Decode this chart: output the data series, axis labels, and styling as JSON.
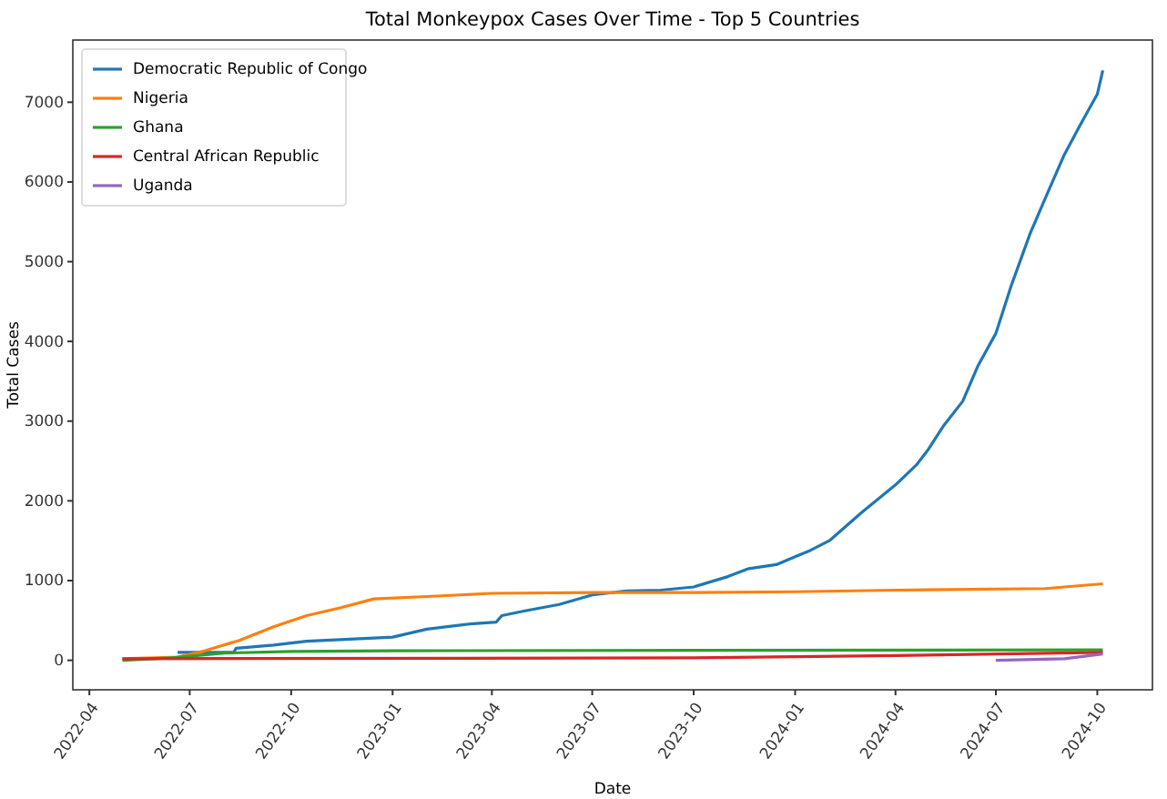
{
  "chart_data": {
    "type": "line",
    "title": "Total Monkeypox Cases Over Time - Top 5 Countries",
    "xlabel": "Date",
    "ylabel": "Total Cases",
    "xlim": [
      "2022-03-17",
      "2024-11-20"
    ],
    "ylim": [
      -370,
      7780
    ],
    "xticks": [
      "2022-04",
      "2022-07",
      "2022-10",
      "2023-01",
      "2023-04",
      "2023-07",
      "2023-10",
      "2024-01",
      "2024-04",
      "2024-07",
      "2024-10"
    ],
    "yticks": [
      0,
      1000,
      2000,
      3000,
      4000,
      5000,
      6000,
      7000
    ],
    "grid": false,
    "legend": "top left",
    "marker": "none",
    "line_style": "solid",
    "series": [
      {
        "name": "Democratic Republic of Congo",
        "color": "#1f77b4",
        "x": [
          "2022-06-20",
          "2022-08-10",
          "2022-08-12",
          "2022-09-15",
          "2022-10-15",
          "2022-12-15",
          "2023-01-01",
          "2023-02-01",
          "2023-03-15",
          "2023-04-05",
          "2023-04-10",
          "2023-05-01",
          "2023-06-01",
          "2023-07-01",
          "2023-08-01",
          "2023-09-01",
          "2023-10-01",
          "2023-11-01",
          "2023-11-20",
          "2023-12-15",
          "2024-01-01",
          "2024-01-15",
          "2024-02-01",
          "2024-03-01",
          "2024-04-01",
          "2024-04-20",
          "2024-05-01",
          "2024-05-15",
          "2024-06-01",
          "2024-06-15",
          "2024-07-01",
          "2024-07-15",
          "2024-08-01",
          "2024-08-15",
          "2024-09-01",
          "2024-09-15",
          "2024-10-01",
          "2024-10-06"
        ],
        "values": [
          100,
          100,
          150,
          190,
          240,
          280,
          290,
          390,
          460,
          480,
          560,
          620,
          700,
          820,
          870,
          880,
          920,
          1050,
          1150,
          1200,
          1300,
          1380,
          1500,
          1850,
          2200,
          2450,
          2650,
          2950,
          3250,
          3700,
          4100,
          4700,
          5350,
          5800,
          6340,
          6700,
          7100,
          7400
        ]
      },
      {
        "name": "Nigeria",
        "color": "#ff7f0e",
        "x": [
          "2022-05-01",
          "2022-06-20",
          "2022-07-15",
          "2022-08-15",
          "2022-09-15",
          "2022-10-15",
          "2022-11-15",
          "2022-12-15",
          "2023-02-01",
          "2023-04-01",
          "2023-07-01",
          "2023-10-01",
          "2024-01-01",
          "2024-04-01",
          "2024-08-15",
          "2024-10-06"
        ],
        "values": [
          20,
          40,
          120,
          250,
          420,
          560,
          660,
          770,
          800,
          840,
          850,
          850,
          860,
          880,
          900,
          960
        ]
      },
      {
        "name": "Ghana",
        "color": "#2ca02c",
        "x": [
          "2022-05-01",
          "2022-06-15",
          "2022-08-01",
          "2022-10-01",
          "2023-01-01",
          "2024-10-06"
        ],
        "values": [
          0,
          30,
          90,
          110,
          120,
          130
        ]
      },
      {
        "name": "Central African Republic",
        "color": "#d62728",
        "x": [
          "2022-05-01",
          "2023-10-01",
          "2024-04-01",
          "2024-10-06"
        ],
        "values": [
          20,
          30,
          60,
          100
        ]
      },
      {
        "name": "Uganda",
        "color": "#9467bd",
        "x": [
          "2024-07-01",
          "2024-09-01",
          "2024-10-06"
        ],
        "values": [
          0,
          20,
          80
        ]
      }
    ]
  }
}
